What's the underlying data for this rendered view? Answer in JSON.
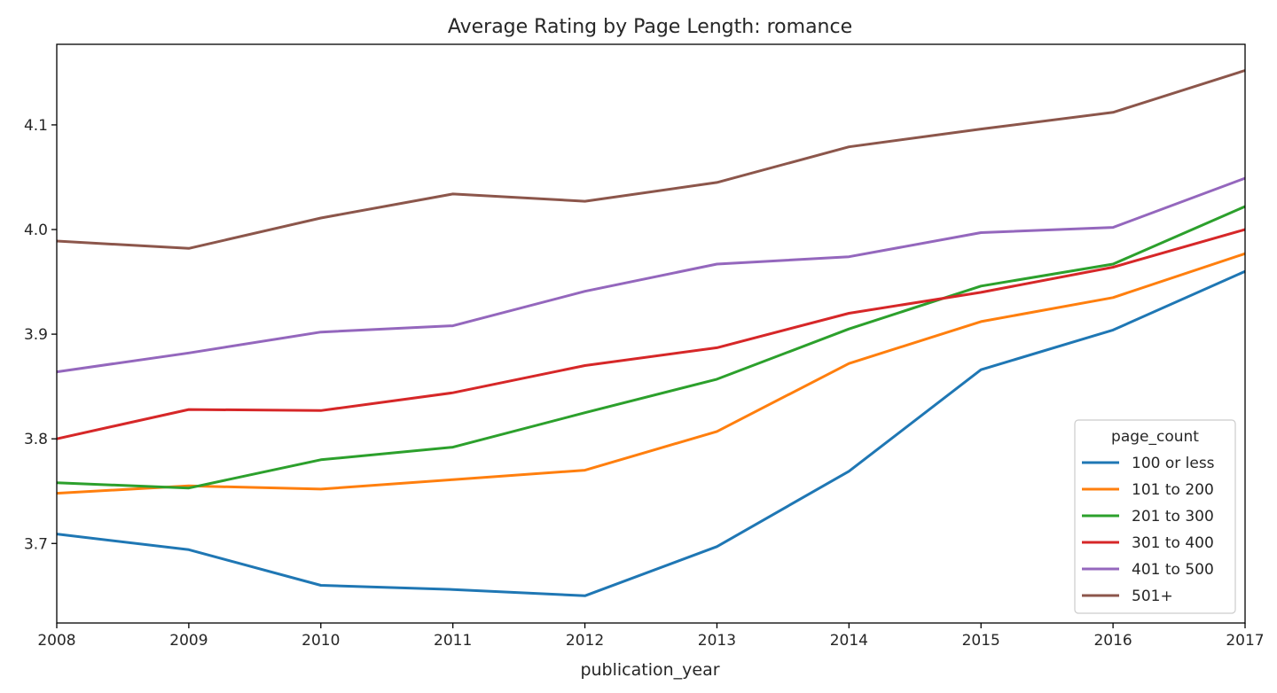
{
  "chart_data": {
    "type": "line",
    "title": "Average Rating by Page Length: romance",
    "xlabel": "publication_year",
    "ylabel": "",
    "x": [
      2008,
      2009,
      2010,
      2011,
      2012,
      2013,
      2014,
      2015,
      2016,
      2017
    ],
    "xlim": [
      2008,
      2017
    ],
    "ylim": [
      3.624,
      4.177
    ],
    "yticks": [
      3.7,
      3.8,
      3.9,
      4.0,
      4.1
    ],
    "ytick_labels": [
      "3.7",
      "3.8",
      "3.9",
      "4.0",
      "4.1"
    ],
    "xtick_labels": [
      "2008",
      "2009",
      "2010",
      "2011",
      "2012",
      "2013",
      "2014",
      "2015",
      "2016",
      "2017"
    ],
    "grid": false,
    "legend": {
      "title": "page_count",
      "position": "lower right"
    },
    "series": [
      {
        "name": "100 or less",
        "color": "#1f77b4",
        "values": [
          3.709,
          3.694,
          3.66,
          3.656,
          3.65,
          3.697,
          3.769,
          3.866,
          3.904,
          3.96
        ]
      },
      {
        "name": "101 to 200",
        "color": "#ff7f0e",
        "values": [
          3.748,
          3.755,
          3.752,
          3.761,
          3.77,
          3.807,
          3.872,
          3.912,
          3.935,
          3.977
        ]
      },
      {
        "name": "201 to 300",
        "color": "#2ca02c",
        "values": [
          3.758,
          3.753,
          3.78,
          3.792,
          3.825,
          3.857,
          3.905,
          3.946,
          3.967,
          4.022
        ]
      },
      {
        "name": "301 to 400",
        "color": "#d62728",
        "values": [
          3.8,
          3.828,
          3.827,
          3.844,
          3.87,
          3.887,
          3.92,
          3.94,
          3.964,
          4.0
        ]
      },
      {
        "name": "401 to 500",
        "color": "#9467bd",
        "values": [
          3.864,
          3.882,
          3.902,
          3.908,
          3.941,
          3.967,
          3.974,
          3.997,
          4.002,
          4.049
        ]
      },
      {
        "name": "501+",
        "color": "#8c564b",
        "values": [
          3.989,
          3.982,
          4.011,
          4.034,
          4.027,
          4.045,
          4.079,
          4.096,
          4.112,
          4.152
        ]
      }
    ]
  }
}
